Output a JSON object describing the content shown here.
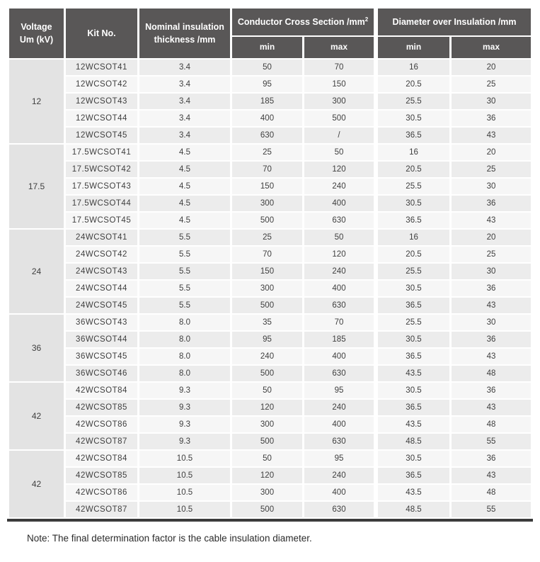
{
  "colors": {
    "header-bg": "#595757",
    "header-text": "#ffffff",
    "row-a": "#ececec",
    "row-b": "#f6f6f6",
    "voltage-bg": "#e3e3e3",
    "border-dark": "#3b3b3b",
    "cell-text": "#3f3f3f",
    "note-text": "#2b2b2b",
    "page-bg": "#ffffff"
  },
  "table": {
    "headers": {
      "voltage": "Voltage\nUm (kV)",
      "kit_no": "Kit No.",
      "nominal": "Nominal insulation\nthickness /mm",
      "conductor_group": "Conductor Cross Section /mm",
      "conductor_sup": "2",
      "diameter_group": "Diameter over Insulation /mm",
      "min": "min",
      "max": "max"
    },
    "groups": [
      {
        "voltage": "12",
        "rows": [
          {
            "kit": "12WCSOT41",
            "thickness": "3.4",
            "cmin": "50",
            "cmax": "70",
            "dmin": "16",
            "dmax": "20"
          },
          {
            "kit": "12WCSOT42",
            "thickness": "3.4",
            "cmin": "95",
            "cmax": "150",
            "dmin": "20.5",
            "dmax": "25"
          },
          {
            "kit": "12WCSOT43",
            "thickness": "3.4",
            "cmin": "185",
            "cmax": "300",
            "dmin": "25.5",
            "dmax": "30"
          },
          {
            "kit": "12WCSOT44",
            "thickness": "3.4",
            "cmin": "400",
            "cmax": "500",
            "dmin": "30.5",
            "dmax": "36"
          },
          {
            "kit": "12WCSOT45",
            "thickness": "3.4",
            "cmin": "630",
            "cmax": "/",
            "dmin": "36.5",
            "dmax": "43"
          }
        ]
      },
      {
        "voltage": "17.5",
        "rows": [
          {
            "kit": "17.5WCSOT41",
            "thickness": "4.5",
            "cmin": "25",
            "cmax": "50",
            "dmin": "16",
            "dmax": "20"
          },
          {
            "kit": "17.5WCSOT42",
            "thickness": "4.5",
            "cmin": "70",
            "cmax": "120",
            "dmin": "20.5",
            "dmax": "25"
          },
          {
            "kit": "17.5WCSOT43",
            "thickness": "4.5",
            "cmin": "150",
            "cmax": "240",
            "dmin": "25.5",
            "dmax": "30"
          },
          {
            "kit": "17.5WCSOT44",
            "thickness": "4.5",
            "cmin": "300",
            "cmax": "400",
            "dmin": "30.5",
            "dmax": "36"
          },
          {
            "kit": "17.5WCSOT45",
            "thickness": "4.5",
            "cmin": "500",
            "cmax": "630",
            "dmin": "36.5",
            "dmax": "43"
          }
        ]
      },
      {
        "voltage": "24",
        "rows": [
          {
            "kit": "24WCSOT41",
            "thickness": "5.5",
            "cmin": "25",
            "cmax": "50",
            "dmin": "16",
            "dmax": "20"
          },
          {
            "kit": "24WCSOT42",
            "thickness": "5.5",
            "cmin": "70",
            "cmax": "120",
            "dmin": "20.5",
            "dmax": "25"
          },
          {
            "kit": "24WCSOT43",
            "thickness": "5.5",
            "cmin": "150",
            "cmax": "240",
            "dmin": "25.5",
            "dmax": "30"
          },
          {
            "kit": "24WCSOT44",
            "thickness": "5.5",
            "cmin": "300",
            "cmax": "400",
            "dmin": "30.5",
            "dmax": "36"
          },
          {
            "kit": "24WCSOT45",
            "thickness": "5.5",
            "cmin": "500",
            "cmax": "630",
            "dmin": "36.5",
            "dmax": "43"
          }
        ]
      },
      {
        "voltage": "36",
        "rows": [
          {
            "kit": "36WCSOT43",
            "thickness": "8.0",
            "cmin": "35",
            "cmax": "70",
            "dmin": "25.5",
            "dmax": "30"
          },
          {
            "kit": "36WCSOT44",
            "thickness": "8.0",
            "cmin": "95",
            "cmax": "185",
            "dmin": "30.5",
            "dmax": "36"
          },
          {
            "kit": "36WCSOT45",
            "thickness": "8.0",
            "cmin": "240",
            "cmax": "400",
            "dmin": "36.5",
            "dmax": "43"
          },
          {
            "kit": "36WCSOT46",
            "thickness": "8.0",
            "cmin": "500",
            "cmax": "630",
            "dmin": "43.5",
            "dmax": "48"
          }
        ]
      },
      {
        "voltage": "42",
        "rows": [
          {
            "kit": "42WCSOT84",
            "thickness": "9.3",
            "cmin": "50",
            "cmax": "95",
            "dmin": "30.5",
            "dmax": "36"
          },
          {
            "kit": "42WCSOT85",
            "thickness": "9.3",
            "cmin": "120",
            "cmax": "240",
            "dmin": "36.5",
            "dmax": "43"
          },
          {
            "kit": "42WCSOT86",
            "thickness": "9.3",
            "cmin": "300",
            "cmax": "400",
            "dmin": "43.5",
            "dmax": "48"
          },
          {
            "kit": "42WCSOT87",
            "thickness": "9.3",
            "cmin": "500",
            "cmax": "630",
            "dmin": "48.5",
            "dmax": "55"
          }
        ]
      },
      {
        "voltage": "42",
        "rows": [
          {
            "kit": "42WCSOT84",
            "thickness": "10.5",
            "cmin": "50",
            "cmax": "95",
            "dmin": "30.5",
            "dmax": "36"
          },
          {
            "kit": "42WCSOT85",
            "thickness": "10.5",
            "cmin": "120",
            "cmax": "240",
            "dmin": "36.5",
            "dmax": "43"
          },
          {
            "kit": "42WCSOT86",
            "thickness": "10.5",
            "cmin": "300",
            "cmax": "400",
            "dmin": "43.5",
            "dmax": "48"
          },
          {
            "kit": "42WCSOT87",
            "thickness": "10.5",
            "cmin": "500",
            "cmax": "630",
            "dmin": "48.5",
            "dmax": "55"
          }
        ]
      }
    ]
  },
  "note": "Note: The final determination factor is the cable insulation diameter."
}
